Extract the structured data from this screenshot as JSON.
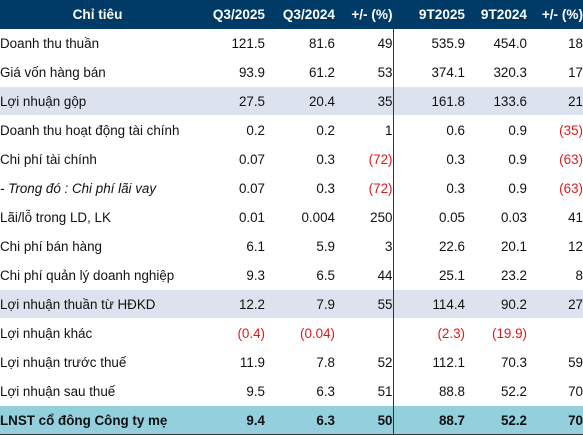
{
  "headers": [
    "Chỉ tiêu",
    "Q3/2025",
    "Q3/2024",
    "+/- (%)",
    "9T2025",
    "9T2024",
    "+/- (%)"
  ],
  "rows": [
    {
      "label": "Doanh thu thuần",
      "q3_2025": "121.5",
      "q3_2024": "81.6",
      "q_pct": "49",
      "t9_2025": "535.9",
      "t9_2024": "454.0",
      "t9_pct": "18"
    },
    {
      "label": "Giá vốn hàng bán",
      "q3_2025": "93.9",
      "q3_2024": "61.2",
      "q_pct": "53",
      "t9_2025": "374.1",
      "t9_2024": "320.3",
      "t9_pct": "17"
    },
    {
      "label": "Lợi nhuận gộp",
      "q3_2025": "27.5",
      "q3_2024": "20.4",
      "q_pct": "35",
      "t9_2025": "161.8",
      "t9_2024": "133.6",
      "t9_pct": "21"
    },
    {
      "label": "Doanh thu hoạt động tài chính",
      "q3_2025": "0.2",
      "q3_2024": "0.2",
      "q_pct": "1",
      "t9_2025": "0.6",
      "t9_2024": "0.9",
      "t9_pct": "(35)"
    },
    {
      "label": "Chi phí tài chính",
      "q3_2025": "0.07",
      "q3_2024": "0.3",
      "q_pct": "(72)",
      "t9_2025": "0.3",
      "t9_2024": "0.9",
      "t9_pct": "(63)"
    },
    {
      "label": "- Trong đó : Chi phí lãi vay",
      "q3_2025": "0.07",
      "q3_2024": "0.3",
      "q_pct": "(72)",
      "t9_2025": "0.3",
      "t9_2024": "0.9",
      "t9_pct": "(63)"
    },
    {
      "label": "Lãi/lỗ trong LD, LK",
      "q3_2025": "0.01",
      "q3_2024": "0.004",
      "q_pct": "250",
      "t9_2025": "0.05",
      "t9_2024": "0.03",
      "t9_pct": "41"
    },
    {
      "label": "Chi phí bán hàng",
      "q3_2025": "6.1",
      "q3_2024": "5.9",
      "q_pct": "3",
      "t9_2025": "22.6",
      "t9_2024": "20.1",
      "t9_pct": "12"
    },
    {
      "label": "Chi phí quản lý doanh nghiệp",
      "q3_2025": "9.3",
      "q3_2024": "6.5",
      "q_pct": "44",
      "t9_2025": "25.1",
      "t9_2024": "23.2",
      "t9_pct": "8"
    },
    {
      "label": "Lợi nhuận thuần từ HĐKD",
      "q3_2025": "12.2",
      "q3_2024": "7.9",
      "q_pct": "55",
      "t9_2025": "114.4",
      "t9_2024": "90.2",
      "t9_pct": "27"
    },
    {
      "label": "Lợi nhuận khác",
      "q3_2025": "(0.4)",
      "q3_2024": "(0.04)",
      "q_pct": "",
      "t9_2025": "(2.3)",
      "t9_2024": "(19.9)",
      "t9_pct": ""
    },
    {
      "label": "Lợi nhuận trước thuế",
      "q3_2025": "11.9",
      "q3_2024": "7.8",
      "q_pct": "52",
      "t9_2025": "112.1",
      "t9_2024": "70.3",
      "t9_pct": "59"
    },
    {
      "label": "Lợi nhuận sau thuế",
      "q3_2025": "9.5",
      "q3_2024": "6.3",
      "q_pct": "51",
      "t9_2025": "88.8",
      "t9_2024": "52.2",
      "t9_pct": "70"
    },
    {
      "label": "LNST cổ đông Công ty mẹ",
      "q3_2025": "9.4",
      "q3_2024": "6.3",
      "q_pct": "50",
      "t9_2025": "88.7",
      "t9_2024": "52.2",
      "t9_pct": "70"
    }
  ],
  "colors": {
    "header_bg": "#003a66",
    "highlight_row_bg": "#dde3ee",
    "total_row_bg": "#93cfdd",
    "negative_text": "#e0191e"
  }
}
